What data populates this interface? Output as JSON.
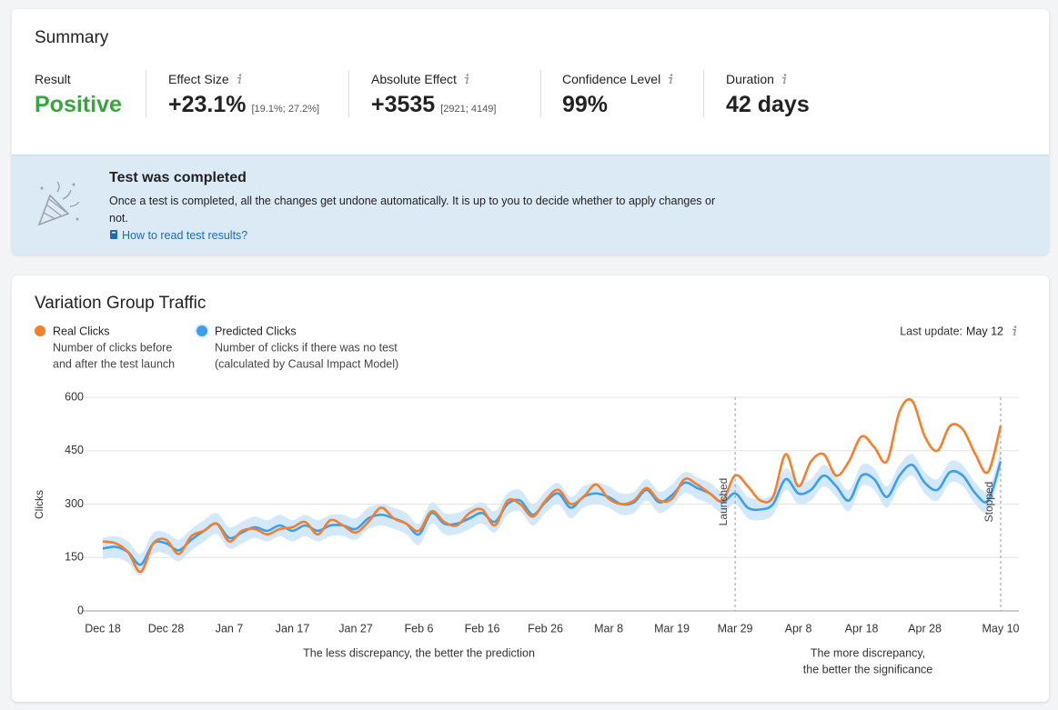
{
  "summary": {
    "title": "Summary",
    "metrics": [
      {
        "label": "Result",
        "value": "Positive"
      },
      {
        "label": "Effect Size",
        "value": "+23.1%",
        "range": "[19.1%; 27.2%]"
      },
      {
        "label": "Absolute Effect",
        "value": "+3535",
        "range": "[2921; 4149]"
      },
      {
        "label": "Confidence Level",
        "value": "99%"
      },
      {
        "label": "Duration",
        "value": "42 days"
      }
    ]
  },
  "banner": {
    "title": "Test was completed",
    "text": "Once a test is completed, all the changes get undone automatically. It is up to you to decide whether to apply changes or not.",
    "link": "How to read test results?"
  },
  "chart_data": {
    "type": "line",
    "title": "Variation Group Traffic",
    "last_update_label": "Last update:",
    "last_update": "May 12",
    "y_label": "Clicks",
    "categories": [
      "Dec 18",
      null,
      null,
      null,
      null,
      "Dec 28",
      null,
      null,
      null,
      null,
      "Jan 7",
      null,
      null,
      null,
      null,
      "Jan 17",
      null,
      null,
      null,
      null,
      "Jan 27",
      null,
      null,
      null,
      null,
      "Feb 6",
      null,
      null,
      null,
      null,
      "Feb 16",
      null,
      null,
      null,
      null,
      "Feb 26",
      null,
      null,
      null,
      null,
      "Mar 8",
      null,
      null,
      null,
      null,
      "Mar 19",
      null,
      null,
      null,
      null,
      "Mar 29",
      null,
      null,
      null,
      null,
      "Apr 8",
      null,
      null,
      null,
      null,
      "Apr 18",
      null,
      null,
      null,
      null,
      "Apr 28",
      null,
      null,
      null,
      null,
      null,
      "May 10"
    ],
    "series": [
      {
        "name": "Real Clicks",
        "color": "#f57f2b",
        "description": [
          "Number of clicks before",
          "and after the test launch"
        ],
        "values": [
          195,
          190,
          165,
          110,
          190,
          200,
          160,
          210,
          225,
          245,
          195,
          225,
          230,
          215,
          230,
          235,
          250,
          215,
          255,
          240,
          220,
          250,
          290,
          260,
          245,
          225,
          280,
          250,
          240,
          275,
          285,
          240,
          310,
          300,
          265,
          310,
          340,
          300,
          320,
          355,
          315,
          300,
          310,
          345,
          310,
          315,
          370,
          355,
          330,
          310,
          380,
          350,
          310,
          320,
          440,
          350,
          420,
          440,
          380,
          420,
          490,
          460,
          420,
          560,
          590,
          490,
          450,
          520,
          510,
          440,
          390,
          520
        ]
      },
      {
        "name": "Predicted Clicks",
        "color": "#3d9fec",
        "band_color": "#d4e8fb",
        "description": [
          "Number of clicks if there was no test",
          "(calculated by Causal Impact Model)"
        ],
        "values": [
          175,
          180,
          165,
          130,
          190,
          190,
          170,
          200,
          225,
          245,
          205,
          220,
          235,
          225,
          240,
          225,
          240,
          225,
          240,
          240,
          230,
          260,
          270,
          260,
          245,
          215,
          275,
          245,
          245,
          260,
          275,
          250,
          300,
          310,
          270,
          305,
          330,
          290,
          320,
          330,
          320,
          300,
          305,
          340,
          305,
          325,
          360,
          345,
          330,
          305,
          330,
          290,
          285,
          300,
          370,
          330,
          340,
          380,
          350,
          310,
          380,
          370,
          320,
          380,
          410,
          360,
          340,
          390,
          380,
          330,
          310,
          420
        ],
        "lower": [
          145,
          150,
          135,
          100,
          160,
          160,
          140,
          170,
          195,
          215,
          175,
          190,
          205,
          195,
          210,
          195,
          210,
          195,
          210,
          210,
          200,
          230,
          240,
          230,
          215,
          185,
          245,
          215,
          215,
          230,
          245,
          220,
          270,
          280,
          240,
          275,
          300,
          260,
          290,
          300,
          290,
          270,
          275,
          310,
          275,
          295,
          330,
          315,
          300,
          275,
          300,
          260,
          255,
          270,
          340,
          300,
          310,
          350,
          320,
          280,
          350,
          340,
          290,
          350,
          380,
          330,
          310,
          360,
          350,
          300,
          280,
          390
        ],
        "upper": [
          205,
          210,
          195,
          160,
          220,
          220,
          200,
          230,
          255,
          275,
          235,
          250,
          265,
          255,
          270,
          255,
          270,
          255,
          270,
          270,
          260,
          290,
          300,
          290,
          275,
          245,
          305,
          275,
          275,
          290,
          305,
          280,
          330,
          340,
          300,
          335,
          360,
          320,
          350,
          360,
          350,
          330,
          335,
          370,
          335,
          355,
          390,
          375,
          360,
          335,
          360,
          320,
          315,
          330,
          400,
          360,
          370,
          410,
          380,
          340,
          410,
          400,
          350,
          410,
          440,
          390,
          370,
          420,
          410,
          360,
          340,
          450
        ]
      }
    ],
    "ylim": [
      0,
      600
    ],
    "yticks": [
      0,
      150,
      300,
      450,
      600
    ],
    "grid": true,
    "markers": [
      {
        "label": "Launched",
        "at": "Mar 29"
      },
      {
        "label": "Stopped",
        "at": "May 10"
      }
    ],
    "notes": [
      {
        "lines": [
          "The less discrepancy, the better the prediction"
        ],
        "from": "Dec 18",
        "to": "Mar 29"
      },
      {
        "lines": [
          "The more discrepancy,",
          "the better the significance"
        ],
        "from": "Mar 29",
        "to": "May 10"
      }
    ]
  }
}
